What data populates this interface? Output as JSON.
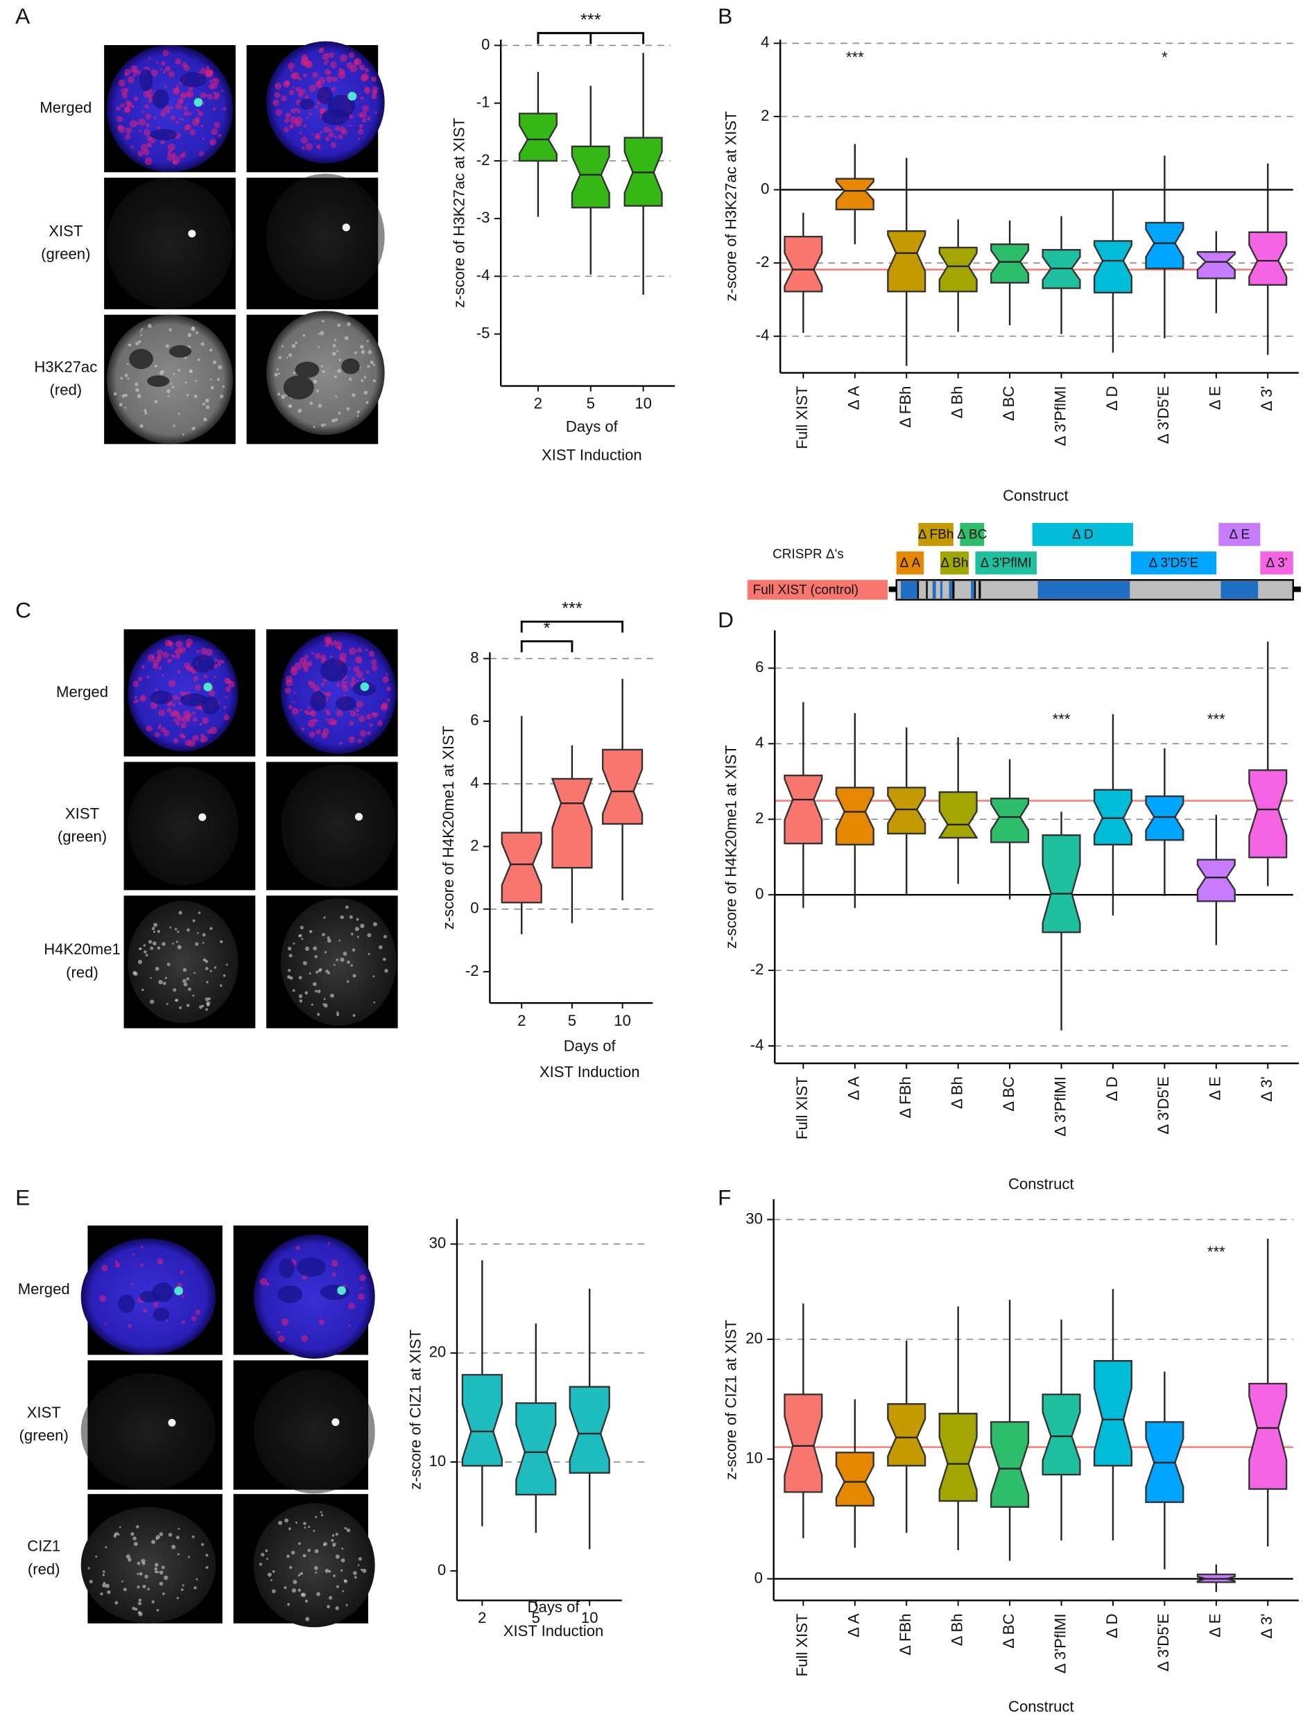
{
  "panel_letters": [
    "A",
    "B",
    "C",
    "D",
    "E",
    "F"
  ],
  "image_panels": [
    {
      "row_labels": [
        [
          "Merged"
        ],
        [
          "XIST",
          "(green)"
        ],
        [
          "H3K27ac",
          "(red)"
        ]
      ]
    },
    {
      "row_labels": [
        [
          "Merged"
        ],
        [
          "XIST",
          "(green)"
        ],
        [
          "H4K20me1",
          "(red)"
        ]
      ]
    },
    {
      "row_labels": [
        [
          "Merged"
        ],
        [
          "XIST",
          "(green)"
        ],
        [
          "CIZ1",
          "(red)"
        ]
      ]
    }
  ],
  "crispr_diagram": {
    "title": "CRISPR Δ's",
    "control_label": "Full XIST (control)",
    "control_color": "#f8766d",
    "deletions": [
      {
        "label": "Δ FBh",
        "color": "#c49a00"
      },
      {
        "label": "Δ BC",
        "color": "#2ebd6a"
      },
      {
        "label": "Δ D",
        "color": "#00bcd8"
      },
      {
        "label": "Δ E",
        "color": "#c77cff"
      },
      {
        "label": "Δ A",
        "color": "#e58700"
      },
      {
        "label": "Δ Bh",
        "color": "#a3a500"
      },
      {
        "label": "Δ 3'PflMI",
        "color": "#1ec0a0"
      },
      {
        "label": "Δ 3'D5'E",
        "color": "#00a5ff"
      },
      {
        "label": "Δ 3'",
        "color": "#f564e3"
      }
    ]
  },
  "chart_data": [
    {
      "type": "box",
      "ylabel": "z-score of H3K27ac at XIST",
      "xlabel": [
        "Days of",
        "XIST Induction"
      ],
      "categories": [
        "2",
        "5",
        "10"
      ],
      "high": [
        -0.46,
        -0.7,
        -0.13
      ],
      "q3": [
        -1.18,
        -1.75,
        -1.6
      ],
      "median": [
        -1.63,
        -2.24,
        -2.2
      ],
      "q1": [
        -2.0,
        -2.81,
        -2.78
      ],
      "low": [
        -2.97,
        -3.97,
        -4.32
      ],
      "color": "#35b815",
      "ylim": [
        -5.9,
        0.1
      ],
      "yticks": [
        0,
        -1,
        -2,
        -3,
        -4,
        -5
      ],
      "gridlines": [
        0,
        -2,
        -4
      ],
      "brackets": [
        {
          "from": "2",
          "to": "5"
        },
        {
          "from": "2",
          "to": "10",
          "label": "***"
        }
      ]
    },
    {
      "type": "box",
      "ylabel": "z-score of H3K27ac at XIST",
      "xlabel": [
        "Construct"
      ],
      "rotate_labels": true,
      "categories": [
        "Full XIST",
        "Δ A",
        "Δ FBh",
        "Δ Bh",
        "Δ BC",
        "Δ 3'PflMI",
        "Δ D",
        "Δ 3'D5'E",
        "Δ E",
        "Δ 3'"
      ],
      "high": [
        -0.63,
        1.25,
        0.87,
        -0.81,
        -0.84,
        -0.72,
        0.0,
        0.93,
        -1.13,
        0.72
      ],
      "q3": [
        -1.28,
        0.3,
        -1.13,
        -1.58,
        -1.49,
        -1.64,
        -1.4,
        -0.9,
        -1.7,
        -1.16
      ],
      "median": [
        -2.18,
        -0.03,
        -1.73,
        -2.09,
        -1.97,
        -2.15,
        -1.94,
        -1.46,
        -1.97,
        -1.94
      ],
      "q1": [
        -2.78,
        -0.54,
        -2.78,
        -2.78,
        -2.54,
        -2.69,
        -2.81,
        -2.15,
        -2.42,
        -2.6
      ],
      "low": [
        -3.91,
        -1.49,
        -4.81,
        -3.88,
        -3.7,
        -3.94,
        -4.45,
        -4.06,
        -3.37,
        -4.51
      ],
      "colors": [
        "#f8766d",
        "#e58700",
        "#c49a00",
        "#a3a500",
        "#2ebd6a",
        "#1ec0a0",
        "#00bcd8",
        "#00a5ff",
        "#c77cff",
        "#f564e3"
      ],
      "ylim": [
        -5.0,
        4.1
      ],
      "yticks": [
        4,
        2,
        0,
        -2,
        -4
      ],
      "gridlines": [
        4,
        2,
        -2,
        -4
      ],
      "zero_line": true,
      "ref_line": -2.18,
      "ref_color": "#f8766d",
      "annotations": [
        {
          "category": "Δ A",
          "label": "***"
        },
        {
          "category": "Δ 3'D5'E",
          "label": "*"
        }
      ]
    },
    {
      "type": "box",
      "ylabel": "z-score of H4K20me1 at XIST",
      "xlabel": [
        "Days of",
        "XIST Induction"
      ],
      "categories": [
        "2",
        "5",
        "10"
      ],
      "high": [
        6.17,
        5.23,
        7.35
      ],
      "q3": [
        2.44,
        4.16,
        5.09
      ],
      "median": [
        1.43,
        3.38,
        3.76
      ],
      "q1": [
        0.21,
        1.32,
        2.72
      ],
      "low": [
        -0.8,
        -0.45,
        0.28
      ],
      "color": "#f8766d",
      "ylim": [
        -3.0,
        8.2
      ],
      "yticks": [
        8,
        6,
        4,
        2,
        0,
        -2
      ],
      "gridlines": [
        8,
        4,
        0
      ],
      "brackets": [
        {
          "from": "2",
          "to": "5",
          "label": "*"
        },
        {
          "from": "2",
          "to": "10",
          "label": "***"
        }
      ]
    },
    {
      "type": "box",
      "ylabel": "z-score of H4K20me1 at XIST",
      "xlabel": [
        "Construct"
      ],
      "rotate_labels": true,
      "categories": [
        "Full XIST",
        "Δ A",
        "Δ FBh",
        "Δ Bh",
        "Δ BC",
        "Δ 3'PflMI",
        "Δ D",
        "Δ 3'D5'E",
        "Δ E",
        "Δ 3'"
      ],
      "high": [
        5.1,
        4.81,
        4.43,
        4.17,
        3.59,
        2.2,
        4.78,
        3.88,
        2.12,
        6.7
      ],
      "q3": [
        3.16,
        2.84,
        2.84,
        2.72,
        2.55,
        1.58,
        2.78,
        2.61,
        0.93,
        3.3
      ],
      "median": [
        2.52,
        2.2,
        2.26,
        1.86,
        2.06,
        0.03,
        2.03,
        2.06,
        0.46,
        2.26
      ],
      "q1": [
        1.36,
        1.33,
        1.62,
        1.51,
        1.39,
        -0.99,
        1.33,
        1.45,
        -0.17,
        0.99
      ],
      "low": [
        -0.35,
        -0.35,
        0.0,
        0.29,
        -0.12,
        -3.59,
        -0.55,
        -0.03,
        -1.33,
        0.23
      ],
      "colors": [
        "#f8766d",
        "#e58700",
        "#c49a00",
        "#a3a500",
        "#2ebd6a",
        "#1ec0a0",
        "#00bcd8",
        "#00a5ff",
        "#c77cff",
        "#f564e3"
      ],
      "ylim": [
        -4.46,
        7.0
      ],
      "yticks": [
        6,
        4,
        2,
        0,
        -2,
        -4
      ],
      "gridlines": [
        6,
        4,
        2,
        -2,
        -4
      ],
      "zero_line": true,
      "ref_line": 2.49,
      "ref_color": "#f8766d",
      "annotations": [
        {
          "category": "Δ 3'PflMI",
          "label": "***"
        },
        {
          "category": "Δ E",
          "label": "***"
        }
      ]
    },
    {
      "type": "box",
      "ylabel": "z-score of CIZ1 at XIST",
      "xlabel": [
        "Days of",
        "XIST Induction"
      ],
      "categories": [
        "2",
        "5",
        "10"
      ],
      "high": [
        28.5,
        22.7,
        25.9
      ],
      "q3": [
        18.0,
        15.4,
        16.9
      ],
      "median": [
        12.8,
        10.9,
        12.6
      ],
      "q1": [
        9.65,
        7.0,
        9.0
      ],
      "low": [
        4.1,
        3.5,
        2.0
      ],
      "color": "#20bdc0",
      "ylim": [
        -2.7,
        32.3
      ],
      "yticks": [
        30,
        20,
        10,
        0
      ],
      "gridlines": [
        30,
        20,
        10
      ]
    },
    {
      "type": "box",
      "ylabel": "z-score of CIZ1 at XIST",
      "xlabel": [
        "Construct"
      ],
      "rotate_labels": true,
      "categories": [
        "Full XIST",
        "Δ A",
        "Δ FBh",
        "Δ Bh",
        "Δ BC",
        "Δ 3'PflMI",
        "Δ D",
        "Δ 3'D5'E",
        "Δ E",
        "Δ 3'"
      ],
      "high": [
        23.0,
        15.0,
        19.9,
        22.75,
        23.3,
        21.65,
        24.2,
        17.3,
        1.2,
        28.4
      ],
      "q3": [
        15.4,
        10.55,
        14.6,
        13.8,
        13.1,
        15.4,
        18.2,
        13.1,
        0.37,
        16.3
      ],
      "median": [
        11.1,
        8.1,
        11.8,
        9.6,
        9.2,
        11.9,
        13.3,
        9.7,
        0.0,
        12.6
      ],
      "q1": [
        7.25,
        6.1,
        9.45,
        6.5,
        6.0,
        8.7,
        9.45,
        6.4,
        -0.28,
        7.5
      ],
      "low": [
        3.4,
        2.6,
        3.85,
        2.4,
        1.5,
        3.2,
        3.2,
        0.8,
        -1.1,
        2.7
      ],
      "colors": [
        "#f8766d",
        "#e58700",
        "#c49a00",
        "#a3a500",
        "#2ebd6a",
        "#1ec0a0",
        "#00bcd8",
        "#00a5ff",
        "#c77cff",
        "#f564e3"
      ],
      "ylim": [
        -1.8,
        31.7
      ],
      "yticks": [
        30,
        20,
        10,
        0
      ],
      "gridlines": [
        30,
        20
      ],
      "zero_line": true,
      "ref_line": 11.0,
      "ref_color": "#f8766d",
      "annotations": [
        {
          "category": "Δ E",
          "label": "***"
        }
      ]
    }
  ]
}
